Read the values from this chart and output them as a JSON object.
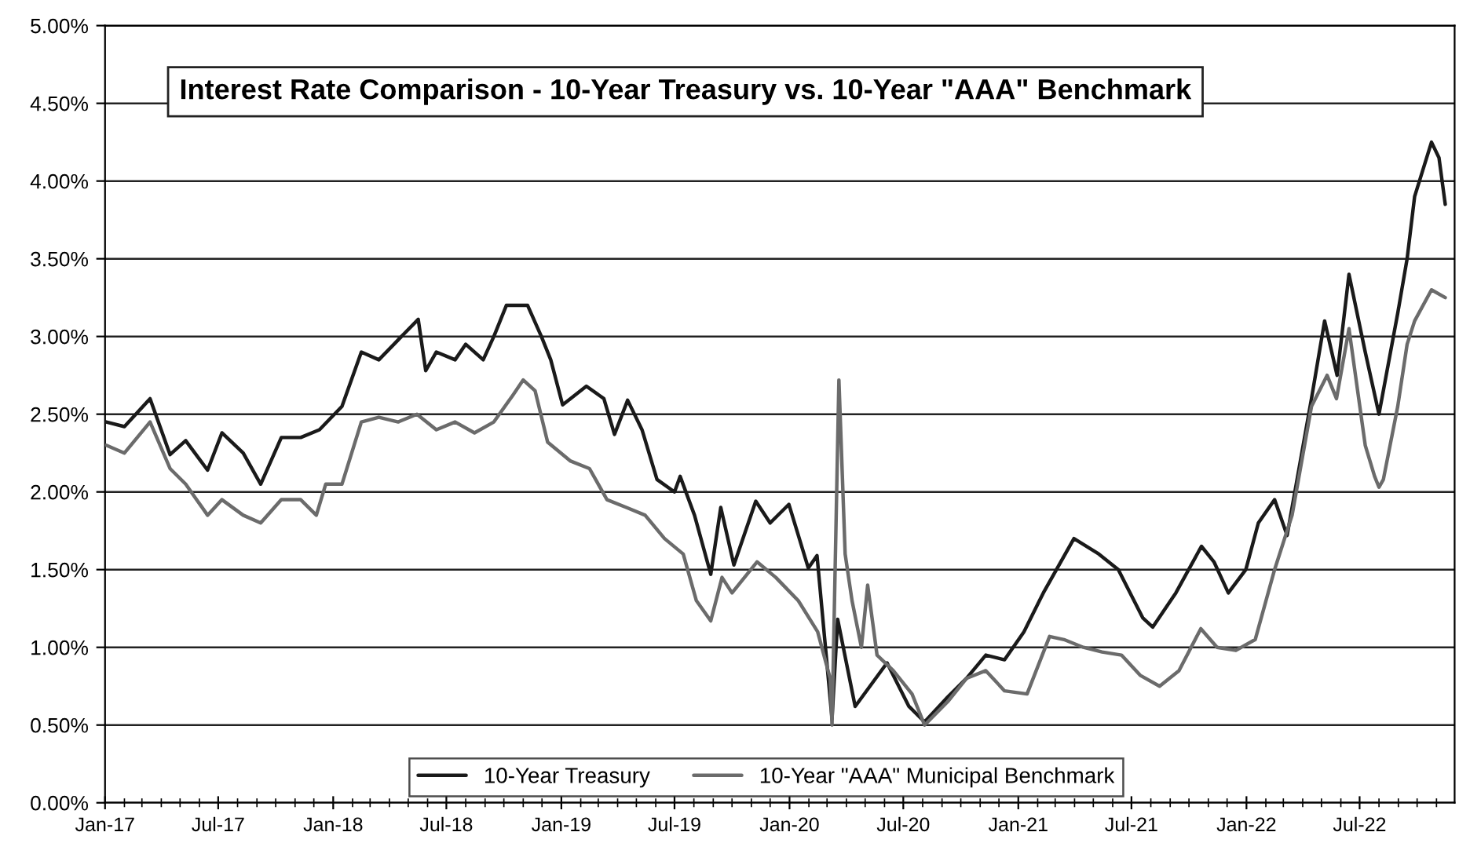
{
  "chart_data": {
    "type": "line",
    "title": "Interest Rate Comparison - 10-Year Treasury vs. 10-Year \"AAA\" Benchmark",
    "series": [
      {
        "name": "10-Year Treasury",
        "color": "#1a1a1a",
        "x": [
          "2017-01-03",
          "2017-02-01",
          "2017-03-14",
          "2017-04-15",
          "2017-05-10",
          "2017-06-14",
          "2017-07-07",
          "2017-08-10",
          "2017-09-07",
          "2017-10-10",
          "2017-11-10",
          "2017-12-10",
          "2018-01-15",
          "2018-02-15",
          "2018-03-15",
          "2018-04-25",
          "2018-05-17",
          "2018-05-29",
          "2018-06-15",
          "2018-07-15",
          "2018-08-01",
          "2018-08-29",
          "2018-09-15",
          "2018-10-05",
          "2018-11-08",
          "2018-11-30",
          "2018-12-15",
          "2019-01-03",
          "2019-02-10",
          "2019-03-10",
          "2019-03-27",
          "2019-04-17",
          "2019-05-10",
          "2019-06-03",
          "2019-07-01",
          "2019-07-10",
          "2019-08-02",
          "2019-08-28",
          "2019-09-13",
          "2019-10-04",
          "2019-11-08",
          "2019-12-01",
          "2019-12-31",
          "2020-01-31",
          "2020-02-14",
          "2020-03-09",
          "2020-03-18",
          "2020-04-15",
          "2020-06-05",
          "2020-07-10",
          "2020-08-04",
          "2020-09-10",
          "2020-10-10",
          "2020-11-10",
          "2020-12-10",
          "2021-01-10",
          "2021-02-10",
          "2021-03-31",
          "2021-05-10",
          "2021-06-10",
          "2021-07-19",
          "2021-08-04",
          "2021-09-10",
          "2021-10-21",
          "2021-11-10",
          "2021-12-03",
          "2021-12-31",
          "2022-01-20",
          "2022-02-15",
          "2022-03-07",
          "2022-04-15",
          "2022-05-06",
          "2022-05-26",
          "2022-06-14",
          "2022-07-10",
          "2022-08-01",
          "2022-08-31",
          "2022-09-15",
          "2022-09-27",
          "2022-10-24",
          "2022-11-05",
          "2022-11-15"
        ],
        "values": [
          2.45,
          2.42,
          2.6,
          2.24,
          2.33,
          2.14,
          2.38,
          2.25,
          2.05,
          2.35,
          2.35,
          2.4,
          2.55,
          2.9,
          2.85,
          3.02,
          3.11,
          2.78,
          2.9,
          2.85,
          2.95,
          2.85,
          3.0,
          3.2,
          3.2,
          3.0,
          2.85,
          2.56,
          2.68,
          2.6,
          2.37,
          2.59,
          2.4,
          2.08,
          2.0,
          2.1,
          1.85,
          1.47,
          1.9,
          1.53,
          1.94,
          1.8,
          1.92,
          1.51,
          1.59,
          0.54,
          1.18,
          0.62,
          0.9,
          0.62,
          0.52,
          0.68,
          0.8,
          0.95,
          0.92,
          1.1,
          1.35,
          1.7,
          1.6,
          1.5,
          1.19,
          1.13,
          1.35,
          1.65,
          1.55,
          1.35,
          1.5,
          1.8,
          1.95,
          1.72,
          2.6,
          3.1,
          2.75,
          3.4,
          2.9,
          2.5,
          3.15,
          3.5,
          3.9,
          4.25,
          4.15,
          3.85
        ]
      },
      {
        "name": "10-Year \"AAA\" Municipal Benchmark",
        "color": "#6b6b6b",
        "x": [
          "2017-01-03",
          "2017-02-01",
          "2017-03-14",
          "2017-04-15",
          "2017-05-10",
          "2017-06-14",
          "2017-07-07",
          "2017-08-10",
          "2017-09-07",
          "2017-10-10",
          "2017-11-10",
          "2017-12-05",
          "2017-12-20",
          "2018-01-15",
          "2018-02-15",
          "2018-03-15",
          "2018-04-15",
          "2018-05-15",
          "2018-06-15",
          "2018-07-15",
          "2018-08-15",
          "2018-09-15",
          "2018-10-15",
          "2018-11-01",
          "2018-11-20",
          "2018-12-10",
          "2019-01-15",
          "2019-02-15",
          "2019-03-15",
          "2019-04-15",
          "2019-05-15",
          "2019-06-15",
          "2019-07-15",
          "2019-08-05",
          "2019-08-28",
          "2019-09-15",
          "2019-10-01",
          "2019-11-10",
          "2019-12-10",
          "2020-01-15",
          "2020-02-15",
          "2020-03-06",
          "2020-03-09",
          "2020-03-20",
          "2020-03-30",
          "2020-04-10",
          "2020-04-25",
          "2020-05-05",
          "2020-05-20",
          "2020-06-15",
          "2020-07-15",
          "2020-08-04",
          "2020-09-10",
          "2020-10-10",
          "2020-11-10",
          "2020-12-10",
          "2021-01-15",
          "2021-02-20",
          "2021-03-15",
          "2021-04-15",
          "2021-05-15",
          "2021-06-15",
          "2021-07-15",
          "2021-08-15",
          "2021-09-15",
          "2021-10-20",
          "2021-11-15",
          "2021-12-15",
          "2022-01-15",
          "2022-02-15",
          "2022-03-15",
          "2022-04-15",
          "2022-05-10",
          "2022-05-25",
          "2022-06-14",
          "2022-07-10",
          "2022-07-25",
          "2022-08-01",
          "2022-08-08",
          "2022-08-31",
          "2022-09-15",
          "2022-09-27",
          "2022-10-24",
          "2022-11-15"
        ],
        "values": [
          2.3,
          2.25,
          2.45,
          2.15,
          2.05,
          1.85,
          1.95,
          1.85,
          1.8,
          1.95,
          1.95,
          1.85,
          2.05,
          2.05,
          2.45,
          2.48,
          2.45,
          2.5,
          2.4,
          2.45,
          2.38,
          2.45,
          2.62,
          2.72,
          2.65,
          2.32,
          2.2,
          2.15,
          1.95,
          1.9,
          1.85,
          1.7,
          1.6,
          1.3,
          1.17,
          1.45,
          1.35,
          1.55,
          1.45,
          1.3,
          1.1,
          0.8,
          0.5,
          2.72,
          1.6,
          1.3,
          1.0,
          1.4,
          0.95,
          0.85,
          0.7,
          0.5,
          0.65,
          0.8,
          0.85,
          0.72,
          0.7,
          1.07,
          1.05,
          1.0,
          0.97,
          0.95,
          0.82,
          0.75,
          0.85,
          1.12,
          1.0,
          0.98,
          1.05,
          1.5,
          1.85,
          2.55,
          2.75,
          2.6,
          3.05,
          2.3,
          2.1,
          2.03,
          2.08,
          2.55,
          2.95,
          3.1,
          3.3,
          3.25
        ]
      }
    ],
    "ylim": [
      0,
      5
    ],
    "yticks": [
      {
        "value": 0,
        "label": "0.00%"
      },
      {
        "value": 0.5,
        "label": "0.50%"
      },
      {
        "value": 1,
        "label": "1.00%"
      },
      {
        "value": 1.5,
        "label": "1.50%"
      },
      {
        "value": 2,
        "label": "2.00%"
      },
      {
        "value": 2.5,
        "label": "2.50%"
      },
      {
        "value": 3,
        "label": "3.00%"
      },
      {
        "value": 3.5,
        "label": "3.50%"
      },
      {
        "value": 4,
        "label": "4.00%"
      },
      {
        "value": 4.5,
        "label": "4.50%"
      },
      {
        "value": 5,
        "label": "5.00%"
      }
    ],
    "xlim": [
      "2017-01-01",
      "2022-11-30"
    ],
    "xticks": [
      {
        "value": "2017-01-01",
        "label": "Jan-17"
      },
      {
        "value": "2017-07-01",
        "label": "Jul-17"
      },
      {
        "value": "2018-01-01",
        "label": "Jan-18"
      },
      {
        "value": "2018-07-01",
        "label": "Jul-18"
      },
      {
        "value": "2019-01-01",
        "label": "Jan-19"
      },
      {
        "value": "2019-07-01",
        "label": "Jul-19"
      },
      {
        "value": "2020-01-01",
        "label": "Jan-20"
      },
      {
        "value": "2020-07-01",
        "label": "Jul-20"
      },
      {
        "value": "2021-01-01",
        "label": "Jan-21"
      },
      {
        "value": "2021-07-01",
        "label": "Jul-21"
      },
      {
        "value": "2022-01-01",
        "label": "Jan-22"
      },
      {
        "value": "2022-07-01",
        "label": "Jul-22"
      },
      {
        "value": "2017-02-01",
        "label": null
      },
      {
        "value": "2017-03-01",
        "label": null
      },
      {
        "value": "2017-04-01",
        "label": null
      },
      {
        "value": "2017-05-01",
        "label": null
      },
      {
        "value": "2017-06-01",
        "label": null
      },
      {
        "value": "2017-08-01",
        "label": null
      },
      {
        "value": "2017-09-01",
        "label": null
      },
      {
        "value": "2017-10-01",
        "label": null
      },
      {
        "value": "2017-11-01",
        "label": null
      },
      {
        "value": "2017-12-01",
        "label": null
      },
      {
        "value": "2018-02-01",
        "label": null
      },
      {
        "value": "2018-03-01",
        "label": null
      },
      {
        "value": "2018-04-01",
        "label": null
      },
      {
        "value": "2018-05-01",
        "label": null
      },
      {
        "value": "2018-06-01",
        "label": null
      },
      {
        "value": "2018-08-01",
        "label": null
      },
      {
        "value": "2018-09-01",
        "label": null
      },
      {
        "value": "2018-10-01",
        "label": null
      },
      {
        "value": "2018-11-01",
        "label": null
      },
      {
        "value": "2018-12-01",
        "label": null
      },
      {
        "value": "2019-02-01",
        "label": null
      },
      {
        "value": "2019-03-01",
        "label": null
      },
      {
        "value": "2019-04-01",
        "label": null
      },
      {
        "value": "2019-05-01",
        "label": null
      },
      {
        "value": "2019-06-01",
        "label": null
      },
      {
        "value": "2019-08-01",
        "label": null
      },
      {
        "value": "2019-09-01",
        "label": null
      },
      {
        "value": "2019-10-01",
        "label": null
      },
      {
        "value": "2019-11-01",
        "label": null
      },
      {
        "value": "2019-12-01",
        "label": null
      },
      {
        "value": "2020-02-01",
        "label": null
      },
      {
        "value": "2020-03-01",
        "label": null
      },
      {
        "value": "2020-04-01",
        "label": null
      },
      {
        "value": "2020-05-01",
        "label": null
      },
      {
        "value": "2020-06-01",
        "label": null
      },
      {
        "value": "2020-08-01",
        "label": null
      },
      {
        "value": "2020-09-01",
        "label": null
      },
      {
        "value": "2020-10-01",
        "label": null
      },
      {
        "value": "2020-11-01",
        "label": null
      },
      {
        "value": "2020-12-01",
        "label": null
      },
      {
        "value": "2021-02-01",
        "label": null
      },
      {
        "value": "2021-03-01",
        "label": null
      },
      {
        "value": "2021-04-01",
        "label": null
      },
      {
        "value": "2021-05-01",
        "label": null
      },
      {
        "value": "2021-06-01",
        "label": null
      },
      {
        "value": "2021-08-01",
        "label": null
      },
      {
        "value": "2021-09-01",
        "label": null
      },
      {
        "value": "2021-10-01",
        "label": null
      },
      {
        "value": "2021-11-01",
        "label": null
      },
      {
        "value": "2021-12-01",
        "label": null
      },
      {
        "value": "2022-02-01",
        "label": null
      },
      {
        "value": "2022-03-01",
        "label": null
      },
      {
        "value": "2022-04-01",
        "label": null
      },
      {
        "value": "2022-05-01",
        "label": null
      },
      {
        "value": "2022-06-01",
        "label": null
      },
      {
        "value": "2022-08-01",
        "label": null
      },
      {
        "value": "2022-09-01",
        "label": null
      },
      {
        "value": "2022-10-01",
        "label": null
      },
      {
        "value": "2022-11-01",
        "label": null
      }
    ],
    "grid": "y",
    "legend": "bottom",
    "marker": "none",
    "line_style": "solid"
  }
}
